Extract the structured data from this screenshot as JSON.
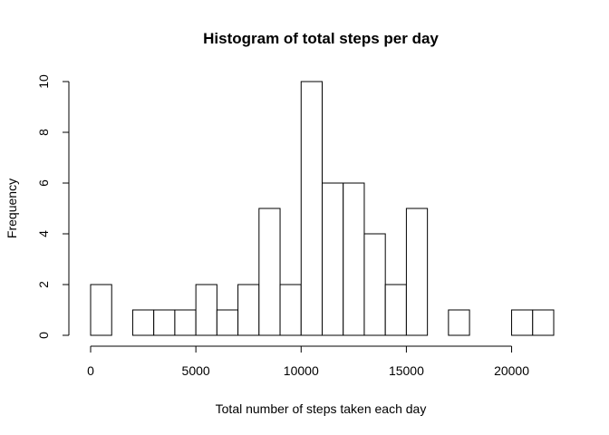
{
  "chart_data": {
    "type": "bar",
    "title": "Histogram of total steps per day",
    "xlabel": "Total number of steps taken each day",
    "ylabel": "Frequency",
    "xlim": [
      0,
      22000
    ],
    "ylim": [
      0,
      10
    ],
    "bin_width": 1000,
    "x_ticks": [
      0,
      5000,
      10000,
      15000,
      20000
    ],
    "y_ticks": [
      0,
      2,
      4,
      6,
      8,
      10
    ],
    "bins": [
      {
        "start": 0,
        "end": 1000,
        "count": 2
      },
      {
        "start": 1000,
        "end": 2000,
        "count": 0
      },
      {
        "start": 2000,
        "end": 3000,
        "count": 1
      },
      {
        "start": 3000,
        "end": 4000,
        "count": 1
      },
      {
        "start": 4000,
        "end": 5000,
        "count": 1
      },
      {
        "start": 5000,
        "end": 6000,
        "count": 2
      },
      {
        "start": 6000,
        "end": 7000,
        "count": 1
      },
      {
        "start": 7000,
        "end": 8000,
        "count": 2
      },
      {
        "start": 8000,
        "end": 9000,
        "count": 5
      },
      {
        "start": 9000,
        "end": 10000,
        "count": 2
      },
      {
        "start": 10000,
        "end": 11000,
        "count": 10
      },
      {
        "start": 11000,
        "end": 12000,
        "count": 6
      },
      {
        "start": 12000,
        "end": 13000,
        "count": 6
      },
      {
        "start": 13000,
        "end": 14000,
        "count": 4
      },
      {
        "start": 14000,
        "end": 15000,
        "count": 2
      },
      {
        "start": 15000,
        "end": 16000,
        "count": 5
      },
      {
        "start": 16000,
        "end": 17000,
        "count": 0
      },
      {
        "start": 17000,
        "end": 18000,
        "count": 1
      },
      {
        "start": 18000,
        "end": 19000,
        "count": 0
      },
      {
        "start": 19000,
        "end": 20000,
        "count": 0
      },
      {
        "start": 20000,
        "end": 21000,
        "count": 1
      },
      {
        "start": 21000,
        "end": 22000,
        "count": 1
      }
    ]
  }
}
